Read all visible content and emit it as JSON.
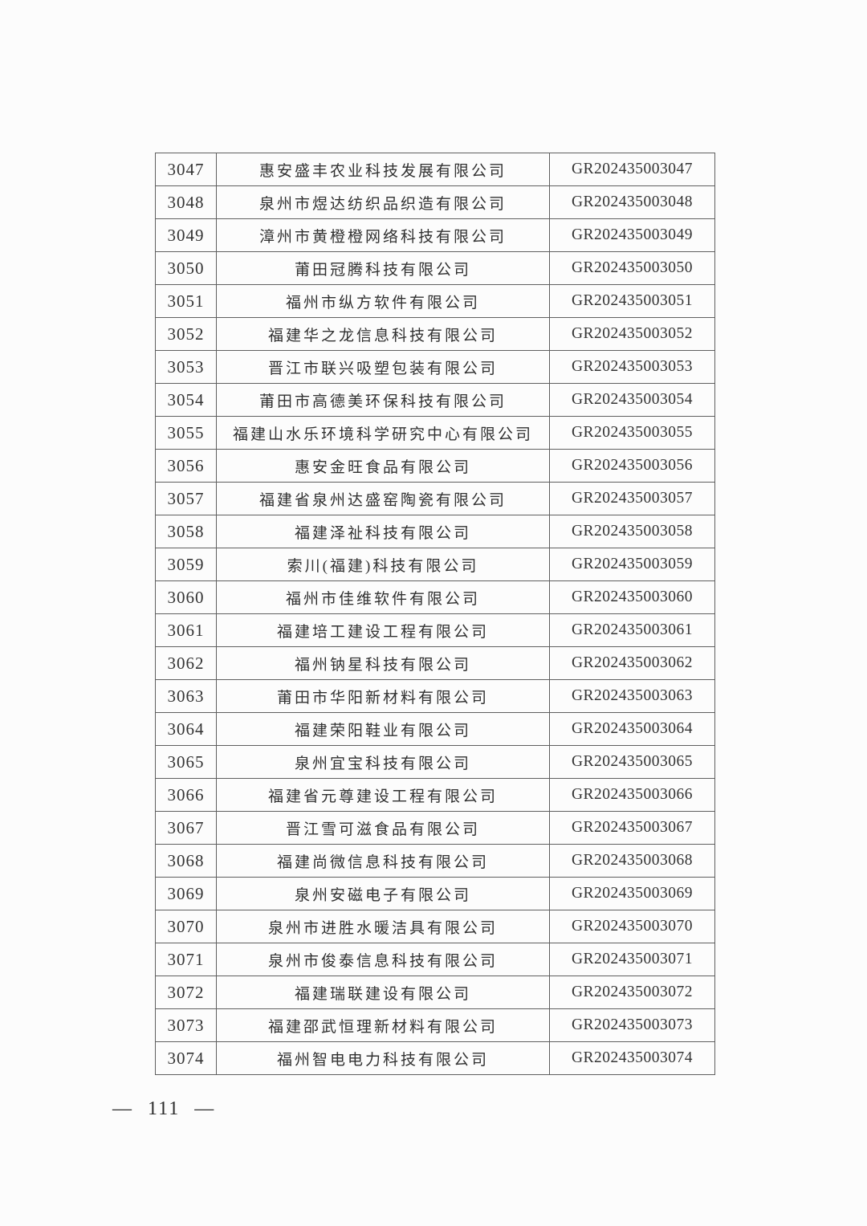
{
  "page": {
    "footer_page_number": "— 111 —"
  },
  "table": {
    "columns": [
      "serial_number",
      "company_name",
      "certificate_code"
    ],
    "rows": [
      {
        "no": "3047",
        "company": "惠安盛丰农业科技发展有限公司",
        "code": "GR202435003047"
      },
      {
        "no": "3048",
        "company": "泉州市煜达纺织品织造有限公司",
        "code": "GR202435003048"
      },
      {
        "no": "3049",
        "company": "漳州市黄橙橙网络科技有限公司",
        "code": "GR202435003049"
      },
      {
        "no": "3050",
        "company": "莆田冠腾科技有限公司",
        "code": "GR202435003050"
      },
      {
        "no": "3051",
        "company": "福州市纵方软件有限公司",
        "code": "GR202435003051"
      },
      {
        "no": "3052",
        "company": "福建华之龙信息科技有限公司",
        "code": "GR202435003052"
      },
      {
        "no": "3053",
        "company": "晋江市联兴吸塑包装有限公司",
        "code": "GR202435003053"
      },
      {
        "no": "3054",
        "company": "莆田市高德美环保科技有限公司",
        "code": "GR202435003054"
      },
      {
        "no": "3055",
        "company": "福建山水乐环境科学研究中心有限公司",
        "code": "GR202435003055"
      },
      {
        "no": "3056",
        "company": "惠安金旺食品有限公司",
        "code": "GR202435003056"
      },
      {
        "no": "3057",
        "company": "福建省泉州达盛窑陶瓷有限公司",
        "code": "GR202435003057"
      },
      {
        "no": "3058",
        "company": "福建泽祉科技有限公司",
        "code": "GR202435003058"
      },
      {
        "no": "3059",
        "company": "索川(福建)科技有限公司",
        "code": "GR202435003059"
      },
      {
        "no": "3060",
        "company": "福州市佳维软件有限公司",
        "code": "GR202435003060"
      },
      {
        "no": "3061",
        "company": "福建培工建设工程有限公司",
        "code": "GR202435003061"
      },
      {
        "no": "3062",
        "company": "福州钠星科技有限公司",
        "code": "GR202435003062"
      },
      {
        "no": "3063",
        "company": "莆田市华阳新材料有限公司",
        "code": "GR202435003063"
      },
      {
        "no": "3064",
        "company": "福建荣阳鞋业有限公司",
        "code": "GR202435003064"
      },
      {
        "no": "3065",
        "company": "泉州宜宝科技有限公司",
        "code": "GR202435003065"
      },
      {
        "no": "3066",
        "company": "福建省元尊建设工程有限公司",
        "code": "GR202435003066"
      },
      {
        "no": "3067",
        "company": "晋江雪可滋食品有限公司",
        "code": "GR202435003067"
      },
      {
        "no": "3068",
        "company": "福建尚微信息科技有限公司",
        "code": "GR202435003068"
      },
      {
        "no": "3069",
        "company": "泉州安磁电子有限公司",
        "code": "GR202435003069"
      },
      {
        "no": "3070",
        "company": "泉州市进胜水暖洁具有限公司",
        "code": "GR202435003070"
      },
      {
        "no": "3071",
        "company": "泉州市俊泰信息科技有限公司",
        "code": "GR202435003071"
      },
      {
        "no": "3072",
        "company": "福建瑞联建设有限公司",
        "code": "GR202435003072"
      },
      {
        "no": "3073",
        "company": "福建邵武恒理新材料有限公司",
        "code": "GR202435003073"
      },
      {
        "no": "3074",
        "company": "福州智电电力科技有限公司",
        "code": "GR202435003074"
      }
    ]
  }
}
